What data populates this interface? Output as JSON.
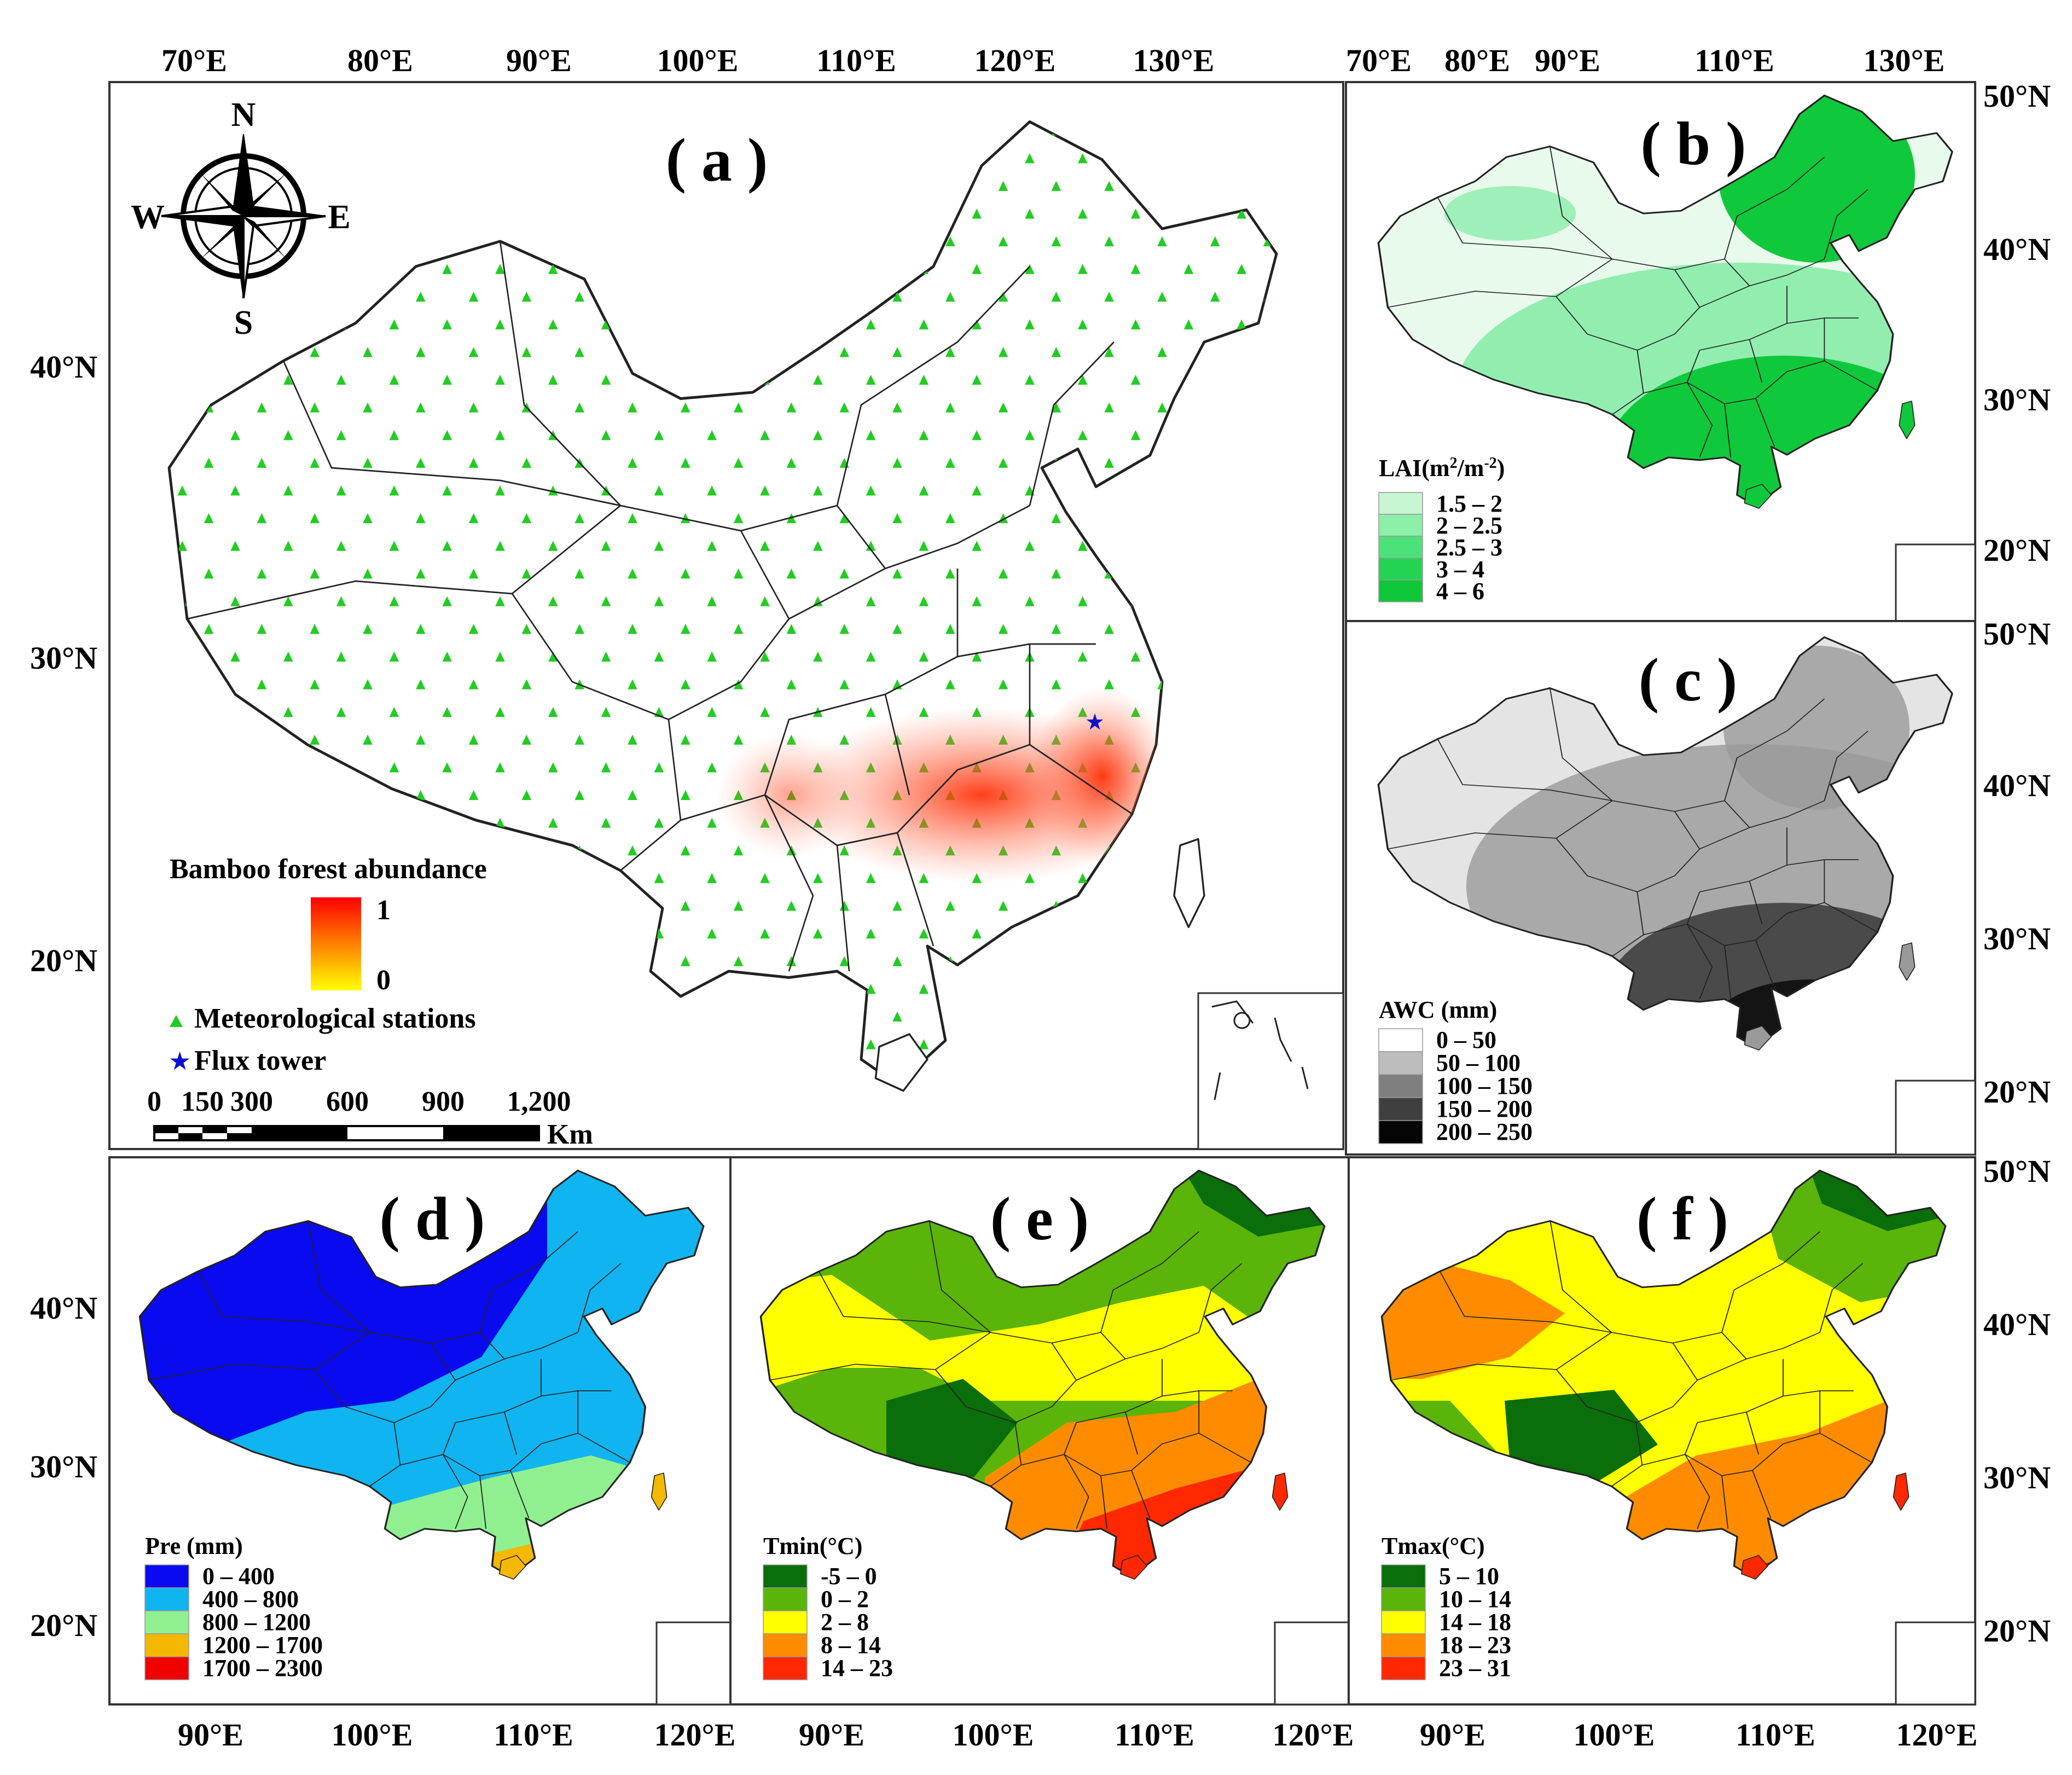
{
  "panels": {
    "a": {
      "title": "( a )"
    },
    "b": {
      "title": "( b )"
    },
    "c": {
      "title": "( c )"
    },
    "d": {
      "title": "( d )"
    },
    "e": {
      "title": "( e )"
    },
    "f": {
      "title": "( f )"
    }
  },
  "axes": {
    "top_a": [
      "70°E",
      "80°E",
      "90°E",
      "100°E",
      "110°E",
      "120°E",
      "130°E"
    ],
    "top_right": [
      "70°E",
      "80°E",
      "90°E",
      "110°E",
      "130°E"
    ],
    "left_a": [
      "40°N",
      "30°N",
      "20°N"
    ],
    "left_d": [
      "40°N",
      "30°N",
      "20°N"
    ],
    "right_b": [
      "50°N",
      "40°N",
      "30°N",
      "20°N"
    ],
    "right_c": [
      "50°N",
      "40°N",
      "30°N",
      "20°N"
    ],
    "right_f": [
      "50°N",
      "40°N",
      "30°N",
      "20°N"
    ],
    "bottom_def": [
      "90°E",
      "100°E",
      "110°E",
      "120°E",
      "90°E",
      "100°E",
      "110°E",
      "120°E",
      "90°E",
      "100°E",
      "110°E",
      "120°E"
    ]
  },
  "compass": {
    "n": "N",
    "s": "S",
    "e": "E",
    "w": "W"
  },
  "legend_a": {
    "title": "Bamboo forest abundance",
    "max": "1",
    "min": "0",
    "stations": "Meteorological stations",
    "tower": "Flux tower",
    "scale_labels": [
      "0",
      "150",
      "300",
      "600",
      "900",
      "1,200"
    ],
    "scale_unit": "Km",
    "colors": {
      "max": "#ff0000",
      "min": "#ffff00",
      "station": "#22cc22",
      "tower": "#1010cc"
    }
  },
  "legend_b": {
    "title_prefix": "LAI(m",
    "title_sup1": "2",
    "title_mid": "/m",
    "title_sup2": "-2",
    "title_suffix": ")",
    "items": [
      {
        "label": "1.5 – 2",
        "color": "#c8f5d2"
      },
      {
        "label": "2 – 2.5",
        "color": "#8cf0a8"
      },
      {
        "label": "2.5 – 3",
        "color": "#4ce27a"
      },
      {
        "label": "3 – 4",
        "color": "#22d452"
      },
      {
        "label": "4 – 6",
        "color": "#0ec83a"
      }
    ]
  },
  "legend_c": {
    "title": "AWC (mm)",
    "items": [
      {
        "label": "0 – 50",
        "color": "#ffffff"
      },
      {
        "label": "50 – 100",
        "color": "#bdbdbd"
      },
      {
        "label": "100 – 150",
        "color": "#7f7f7f"
      },
      {
        "label": "150 – 200",
        "color": "#3f3f3f"
      },
      {
        "label": "200 – 250",
        "color": "#050505"
      }
    ]
  },
  "legend_d": {
    "title": "Pre (mm)",
    "items": [
      {
        "label": "0 – 400",
        "color": "#0a0af0"
      },
      {
        "label": "400 – 800",
        "color": "#10b4f0"
      },
      {
        "label": "800 – 1200",
        "color": "#90f090"
      },
      {
        "label": "1200 – 1700",
        "color": "#f5b800"
      },
      {
        "label": "1700 – 2300",
        "color": "#f00000"
      }
    ]
  },
  "legend_e": {
    "title": "Tmin(°C)",
    "items": [
      {
        "label": "-5 – 0",
        "color": "#0a6e0a"
      },
      {
        "label": "0 – 2",
        "color": "#5ab40a"
      },
      {
        "label": "2 – 8",
        "color": "#ffff00"
      },
      {
        "label": "8 – 14",
        "color": "#ff8c00"
      },
      {
        "label": "14 – 23",
        "color": "#ff2800"
      }
    ]
  },
  "legend_f": {
    "title": "Tmax(°C)",
    "items": [
      {
        "label": "5 – 10",
        "color": "#0a6e0a"
      },
      {
        "label": "10 – 14",
        "color": "#5ab40a"
      },
      {
        "label": "14 – 18",
        "color": "#ffff00"
      },
      {
        "label": "18 – 23",
        "color": "#ff8c00"
      },
      {
        "label": "23 – 31",
        "color": "#ff2800"
      }
    ]
  },
  "colors": {
    "b_base": "#e8faec",
    "b_mid": "#6ee896",
    "b_dark": "#10c83c",
    "c_light": "#e4e4e4",
    "c_mid": "#9a9a9a",
    "c_dark": "#4a4a4a",
    "c_black": "#141414"
  }
}
